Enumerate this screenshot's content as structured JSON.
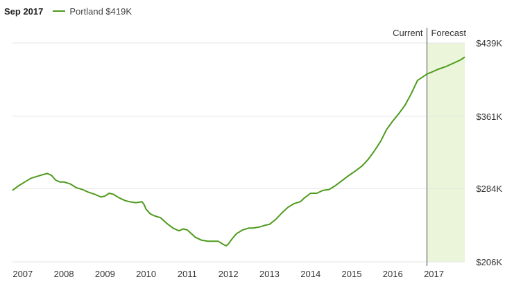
{
  "legend": {
    "date": "Sep 2017",
    "series_label": "Portland $419K"
  },
  "colors": {
    "line": "#4e9a1c",
    "forecast_band": "#eaf5d9",
    "grid": "#e6e6e6",
    "divider": "#888888"
  },
  "chart_data": {
    "type": "line",
    "title": "",
    "xlabel": "",
    "ylabel": "",
    "xlim": [
      2006.75,
      2017.75
    ],
    "ylim": [
      206,
      439
    ],
    "x_ticks": [
      {
        "value": 2007,
        "label": "2007"
      },
      {
        "value": 2008,
        "label": "2008"
      },
      {
        "value": 2009,
        "label": "2009"
      },
      {
        "value": 2010,
        "label": "2010"
      },
      {
        "value": 2011,
        "label": "2011"
      },
      {
        "value": 2012,
        "label": "2012"
      },
      {
        "value": 2013,
        "label": "2013"
      },
      {
        "value": 2014,
        "label": "2014"
      },
      {
        "value": 2015,
        "label": "2015"
      },
      {
        "value": 2016,
        "label": "2016"
      },
      {
        "value": 2017,
        "label": "2017"
      }
    ],
    "y_ticks": [
      {
        "value": 439,
        "label": "$439K"
      },
      {
        "value": 361,
        "label": "$361K"
      },
      {
        "value": 284,
        "label": "$284K"
      },
      {
        "value": 206,
        "label": "$206K"
      }
    ],
    "grid": true,
    "current_marker": {
      "x": 2016.83,
      "label": "Current"
    },
    "forecast": {
      "from": 2016.83,
      "to": 2017.75,
      "label": "Forecast"
    },
    "series": [
      {
        "name": "Portland",
        "x": [
          2006.75,
          2006.9,
          2007.05,
          2007.2,
          2007.35,
          2007.5,
          2007.6,
          2007.7,
          2007.8,
          2007.9,
          2008.0,
          2008.15,
          2008.3,
          2008.45,
          2008.6,
          2008.75,
          2008.9,
          2009.0,
          2009.1,
          2009.2,
          2009.35,
          2009.5,
          2009.6,
          2009.75,
          2009.9,
          2009.95,
          2010.0,
          2010.1,
          2010.2,
          2010.35,
          2010.5,
          2010.65,
          2010.8,
          2010.9,
          2011.0,
          2011.1,
          2011.2,
          2011.35,
          2011.5,
          2011.6,
          2011.75,
          2011.9,
          2011.95,
          2012.0,
          2012.05,
          2012.1,
          2012.2,
          2012.35,
          2012.5,
          2012.6,
          2012.75,
          2012.9,
          2013.0,
          2013.15,
          2013.3,
          2013.45,
          2013.6,
          2013.75,
          2013.85,
          2014.0,
          2014.15,
          2014.3,
          2014.45,
          2014.6,
          2014.75,
          2014.9,
          2015.0,
          2015.1,
          2015.25,
          2015.4,
          2015.55,
          2015.7,
          2015.85,
          2016.0,
          2016.15,
          2016.3,
          2016.45,
          2016.6,
          2016.7,
          2016.83,
          2016.95,
          2017.1,
          2017.3,
          2017.5,
          2017.65,
          2017.75
        ],
        "values": [
          282,
          287,
          291,
          295,
          297,
          299,
          300,
          298,
          293,
          291,
          291,
          289,
          285,
          283,
          280,
          278,
          275,
          276,
          279,
          278,
          274,
          271,
          270,
          269,
          270,
          267,
          262,
          257,
          255,
          253,
          247,
          242,
          239,
          241,
          240,
          236,
          232,
          229,
          228,
          228,
          228,
          224,
          223,
          225,
          228,
          231,
          236,
          240,
          242,
          242,
          243,
          245,
          246,
          251,
          258,
          264,
          268,
          270,
          274,
          279,
          279,
          282,
          283,
          287,
          292,
          297,
          300,
          303,
          308,
          315,
          324,
          334,
          347,
          356,
          364,
          373,
          385,
          399,
          402,
          406,
          408,
          411,
          414,
          418,
          421,
          424
        ]
      }
    ]
  }
}
